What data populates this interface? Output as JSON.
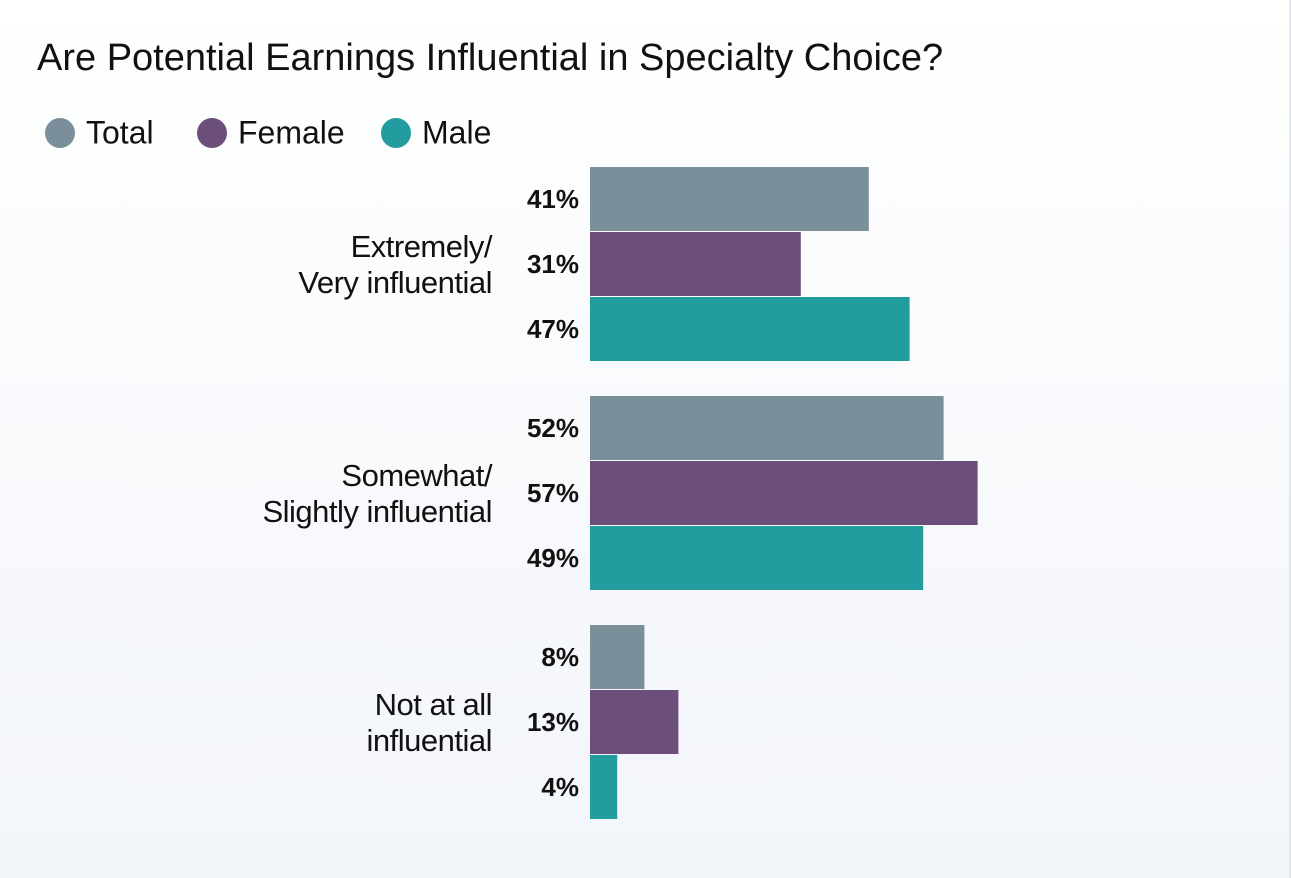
{
  "chart_data": {
    "type": "hbar",
    "title": "Are Potential Earnings Influential in Specialty Choice?",
    "categories": [
      "Extremely/\nVery influential",
      "Somewhat/\nSlightly influential",
      "Not at all\ninfluential"
    ],
    "series": [
      {
        "name": "Total",
        "color": "#7a8f99",
        "values": [
          41,
          52,
          8
        ],
        "value_labels": [
          "41%",
          "52%",
          "8%"
        ]
      },
      {
        "name": "Female",
        "color": "#6b4f7a",
        "values": [
          31,
          57,
          13
        ],
        "value_labels": [
          "31%",
          "57%",
          "13%"
        ]
      },
      {
        "name": "Male",
        "color": "#229c9f",
        "values": [
          47,
          49,
          4
        ],
        "value_labels": [
          "47%",
          "49%",
          "4%"
        ]
      }
    ],
    "legend": "top-left"
  }
}
